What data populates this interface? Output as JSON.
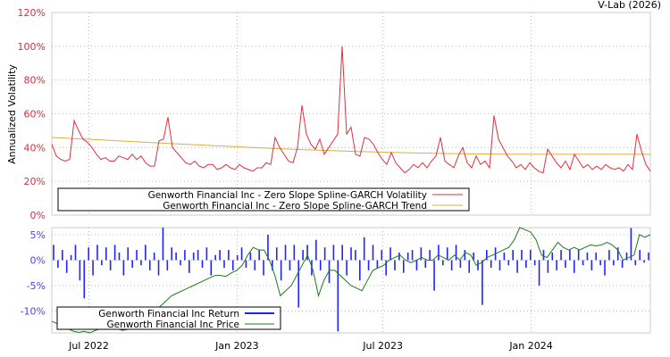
{
  "credit": "V-Lab (2026)",
  "colors": {
    "volatility": "#e0303f",
    "trend": "#d8b040",
    "return": "#2222ff",
    "price": "#1a7a1a",
    "vol_ticks": "#d03040",
    "ret_ticks": "#4444ff",
    "grid": "#bbbbbb"
  },
  "chart_data": [
    {
      "type": "line",
      "title": "",
      "ylabel": "Annualized Volatility",
      "ylim": [
        0,
        120
      ],
      "y_ticks": [
        "0%",
        "20%",
        "40%",
        "60%",
        "80%",
        "100%",
        "120%"
      ],
      "y_tick_values": [
        0,
        20,
        40,
        60,
        80,
        100,
        120
      ],
      "x_range": [
        "2022-05-16",
        "2024-05-28"
      ],
      "grid": true,
      "legend_placement": "bottom-left",
      "series": [
        {
          "name": "Genworth Financial Inc - Zero Slope Spline-GARCH Volatility",
          "values": [
            42,
            35,
            33,
            32,
            33,
            56,
            50,
            45,
            43,
            40,
            36,
            33,
            34,
            32,
            32,
            35,
            34,
            33,
            36,
            33,
            35,
            31,
            29,
            29,
            44,
            45,
            58,
            40,
            37,
            34,
            31,
            30,
            32,
            29,
            28,
            30,
            30,
            27,
            28,
            30,
            28,
            27,
            30,
            28,
            27,
            26,
            28,
            28,
            31,
            30,
            46,
            40,
            36,
            32,
            31,
            40,
            65,
            48,
            42,
            39,
            45,
            36,
            40,
            44,
            48,
            100,
            48,
            52,
            36,
            35,
            46,
            45,
            42,
            37,
            33,
            30,
            37,
            31,
            28,
            25,
            27,
            30,
            28,
            31,
            28,
            32,
            35,
            46,
            32,
            30,
            28,
            35,
            40,
            31,
            28,
            35,
            30,
            32,
            28,
            59,
            45,
            40,
            35,
            32,
            28,
            30,
            27,
            31,
            28,
            26,
            25,
            39,
            35,
            31,
            28,
            32,
            27,
            36,
            32,
            28,
            30,
            27,
            29,
            27,
            30,
            28,
            27,
            28,
            26,
            30,
            27,
            48,
            38,
            30,
            26
          ]
        },
        {
          "name": "Genworth Financial Inc - Zero Slope Spline-GARCH Trend",
          "values": [
            46,
            44.5,
            43,
            41.5,
            40,
            38.8,
            37.8,
            37,
            36.4,
            36.1,
            36,
            36,
            36
          ]
        }
      ]
    },
    {
      "type": "bar",
      "ylim": [
        -14.3,
        6.4
      ],
      "y_ticks": [
        "-10%",
        "-5%",
        "0%",
        "5%"
      ],
      "y_tick_values": [
        -10,
        -5,
        0,
        5
      ],
      "x_range": [
        "2022-05-16",
        "2024-05-28"
      ],
      "x_ticks": [
        "Jul 2022",
        "Jan 2023",
        "Jul 2023",
        "Jan 2024"
      ],
      "x_tick_dates": [
        "2022-07-01",
        "2023-01-01",
        "2023-07-01",
        "2024-01-01"
      ],
      "grid": true,
      "legend_placement": "bottom-left",
      "series": [
        {
          "name": "Genworth Financial Inc Return",
          "values": [
            3,
            -1.5,
            2,
            -2.5,
            1,
            3,
            -4,
            -7.5,
            2.5,
            -3,
            3,
            -1,
            2.5,
            -2,
            3,
            1.5,
            -3,
            2.5,
            -1.5,
            2,
            -1,
            3,
            -2,
            1.5,
            -3,
            6.5,
            -2,
            2.5,
            1.5,
            -1,
            2,
            -2.5,
            1.5,
            2,
            -1.5,
            2.5,
            -3,
            1,
            2,
            -1.5,
            2,
            -2,
            1,
            2.5,
            -1.5,
            1.5,
            -2,
            2,
            -3,
            5,
            -2,
            2.5,
            -4,
            3,
            -2,
            3,
            -9.3,
            2,
            3,
            -3,
            4,
            -2,
            2.5,
            -4.5,
            3,
            -14,
            3,
            -3,
            2.5,
            2,
            -4,
            4.5,
            -2,
            3,
            -1.5,
            2,
            -3,
            2.5,
            -2,
            1.5,
            -2.5,
            1.5,
            2,
            -2,
            2.5,
            -1.5,
            2,
            -6,
            3,
            -1,
            2.5,
            -2,
            3,
            -1.5,
            2,
            -2.5,
            1.5,
            -2,
            -8.8,
            2,
            -1.5,
            2.5,
            -2,
            1.5,
            -1,
            2,
            -2.5,
            2,
            -1.5,
            2,
            -1,
            -5,
            2,
            -2.5,
            1.5,
            -2,
            2,
            -1.5,
            2,
            -2.5,
            2,
            -1,
            1.5,
            -2,
            1.5,
            -1,
            -3,
            2,
            -1,
            2.5,
            -1.5,
            1.5,
            6.3,
            -1,
            2,
            -0.5,
            1.5
          ]
        },
        {
          "name": "Genworth Financial Inc Price",
          "values": [
            -12,
            -12.5,
            -13,
            -13.5,
            -14,
            -14.2,
            -14,
            -14.3,
            -13.8,
            -13.5,
            -13.2,
            -13,
            -13.5,
            -13.8,
            -13.6,
            -13.2,
            -13,
            -12.5,
            -11,
            -10,
            -9,
            -8,
            -7,
            -6.5,
            -6,
            -5.5,
            -5,
            -4.5,
            -4,
            -3.5,
            -3,
            -3,
            -3.2,
            -2.5,
            -2,
            -1,
            1,
            2.5,
            2,
            2,
            0,
            -3,
            -7,
            -6,
            -5,
            -3,
            -1,
            1,
            -2,
            -7,
            -4,
            -2,
            -2,
            -3,
            -4,
            -5,
            -5.5,
            -6,
            -4,
            -2,
            -1.5,
            -1,
            0,
            0.5,
            1,
            0,
            -0.5,
            0,
            0.5,
            0,
            0,
            1,
            0.5,
            0,
            1,
            0,
            1.5,
            1,
            -1,
            -0.5,
            0.5,
            1,
            1.5,
            2,
            2.5,
            4,
            6.5,
            6,
            5.5,
            4,
            1,
            0.5,
            2,
            3.5,
            2.5,
            2,
            2.5,
            2,
            2.5,
            3,
            2.8,
            3,
            3.5,
            3,
            2,
            0,
            0.5,
            1,
            5,
            4.5,
            5
          ]
        }
      ]
    }
  ]
}
